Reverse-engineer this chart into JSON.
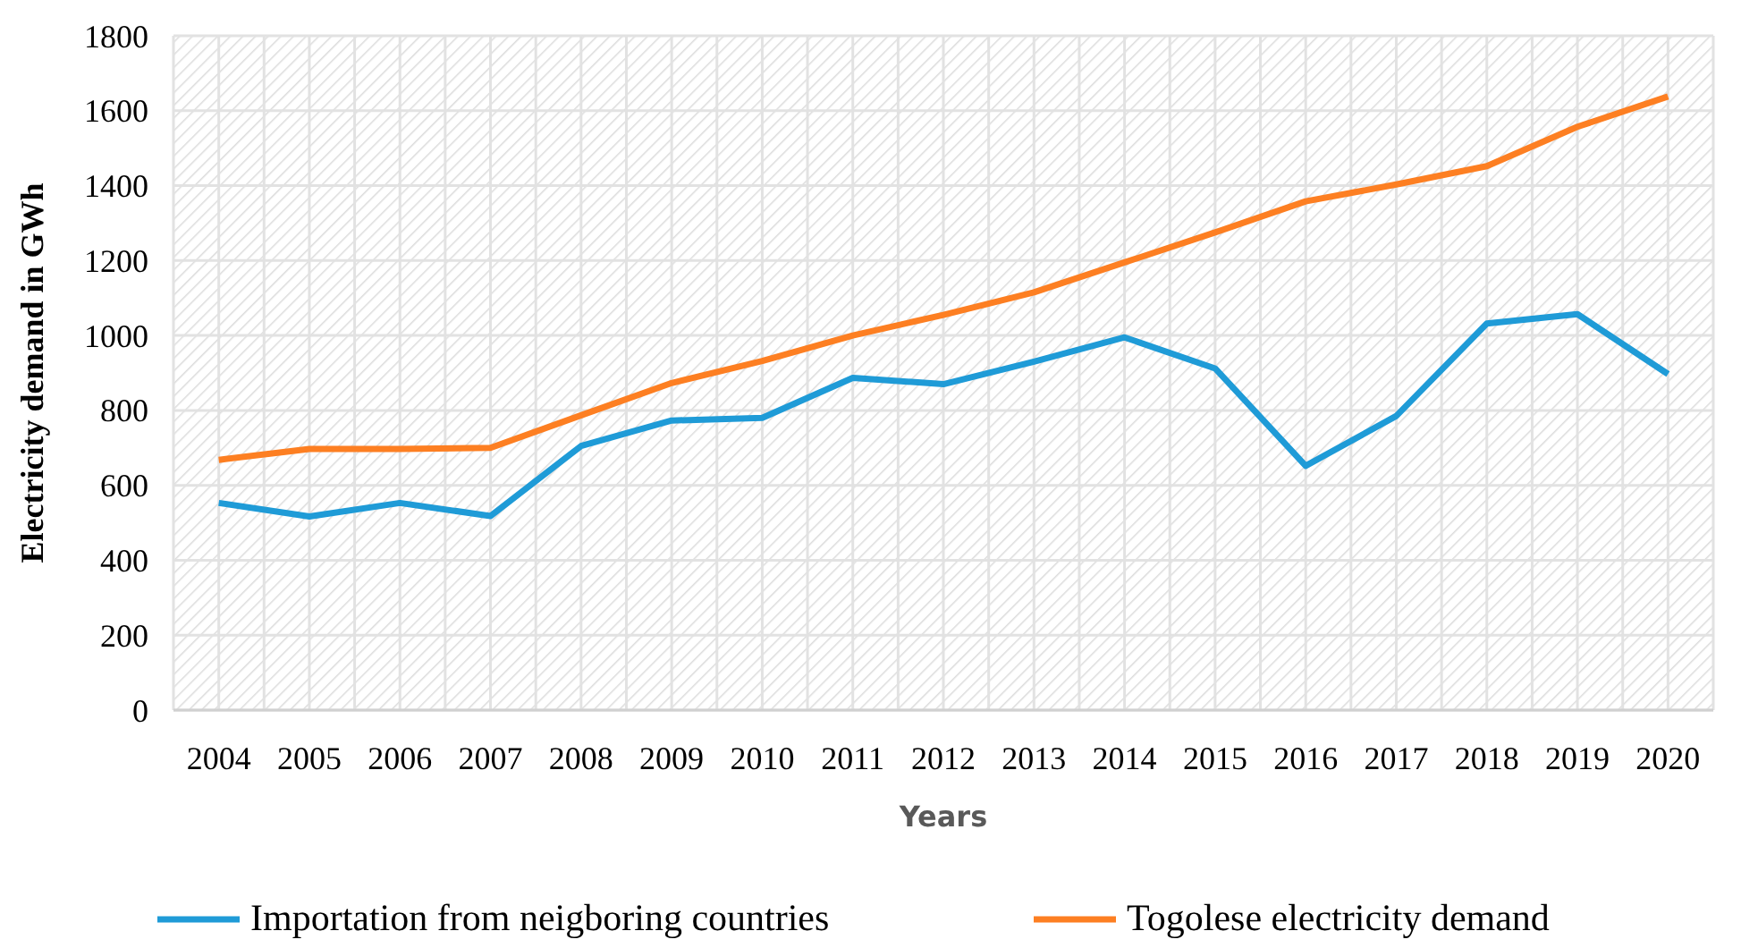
{
  "chart_data": {
    "type": "line",
    "xlabel": "Years",
    "ylabel": "Electricity demand in GWh",
    "categories": [
      "2004",
      "2005",
      "2006",
      "2007",
      "2008",
      "2009",
      "2010",
      "2011",
      "2012",
      "2013",
      "2014",
      "2015",
      "2016",
      "2017",
      "2018",
      "2019",
      "2020"
    ],
    "series": [
      {
        "name": "Importation from neigboring countries",
        "color": "#1f9bd7",
        "values": [
          553,
          517,
          553,
          518,
          705,
          773,
          780,
          887,
          870,
          930,
          995,
          912,
          652,
          785,
          1032,
          1057,
          897
        ]
      },
      {
        "name": "Togolese electricity demand",
        "color": "#fd7f22",
        "values": [
          668,
          697,
          697,
          700,
          787,
          873,
          932,
          1000,
          1055,
          1115,
          1195,
          1275,
          1358,
          1403,
          1452,
          1557,
          1638
        ]
      }
    ],
    "ylim": [
      0,
      1800
    ],
    "yticks": [
      0,
      200,
      400,
      600,
      800,
      1000,
      1200,
      1400,
      1600,
      1800
    ],
    "grid": true,
    "legend": "bottom",
    "marker": "none",
    "line_style": "solid"
  }
}
